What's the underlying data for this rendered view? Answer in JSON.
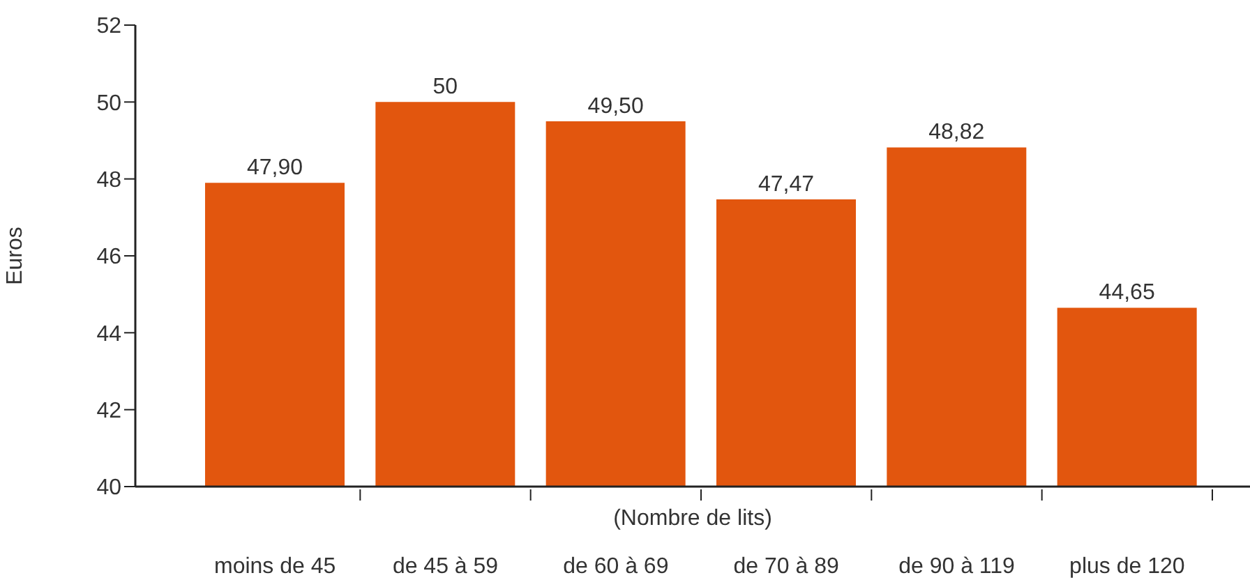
{
  "chart_data": {
    "type": "bar",
    "ylabel": "Euros",
    "xlabel": "(Nombre de lits)",
    "categories": [
      "moins de 45",
      "de 45 à 59",
      "de 60 à 69",
      "de 70 à 89",
      "de 90 à 119",
      "plus de 120"
    ],
    "values": [
      47.9,
      50,
      49.5,
      47.47,
      48.82,
      44.65
    ],
    "value_labels": [
      "47,90",
      "50",
      "49,50",
      "47,47",
      "48,82",
      "44,65"
    ],
    "color": "#e2560e",
    "ylim": [
      40,
      52
    ],
    "yticks": [
      40,
      42,
      44,
      46,
      48,
      50,
      52
    ],
    "grid": false
  }
}
